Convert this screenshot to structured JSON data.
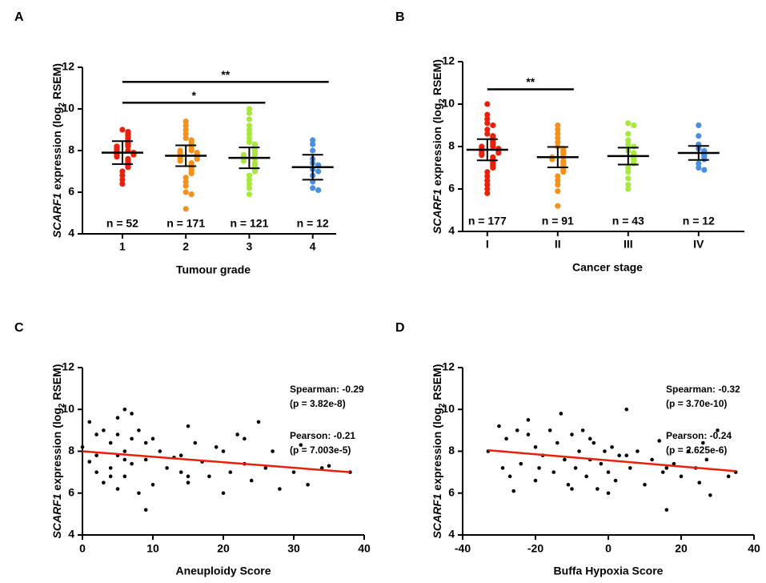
{
  "chart_data": [
    {
      "type": "dot",
      "letter": "A",
      "y_label": [
        "SCARF1",
        " expression (log",
        "2",
        " RSEM)"
      ],
      "x_label": "Tumour grade",
      "categories": [
        "1",
        "2",
        "3",
        "4"
      ],
      "n_labels": [
        "n = 52",
        "n = 171",
        "n = 121",
        "n = 12"
      ],
      "groups": [
        {
          "color": "#e8200c",
          "values": [
            9.0,
            8.9,
            8.8,
            8.7,
            8.6,
            8.5,
            8.4,
            8.3,
            8.2,
            8.2,
            8.1,
            8.0,
            8.0,
            7.9,
            7.9,
            7.8,
            7.8,
            7.7,
            7.6,
            7.5,
            7.4,
            7.3,
            7.2,
            7.0,
            6.8,
            6.6,
            6.4
          ],
          "mean": 7.9,
          "sd": 0.55
        },
        {
          "color": "#f0921c",
          "values": [
            9.4,
            9.2,
            9.0,
            8.8,
            8.6,
            8.5,
            8.4,
            8.3,
            8.2,
            8.1,
            8.0,
            8.0,
            7.9,
            7.9,
            7.8,
            7.8,
            7.7,
            7.7,
            7.6,
            7.6,
            7.5,
            7.4,
            7.3,
            7.2,
            7.1,
            7.0,
            6.9,
            6.7,
            6.5,
            6.3,
            6.0,
            5.9,
            5.2
          ],
          "mean": 7.75,
          "sd": 0.5
        },
        {
          "color": "#a8e83c",
          "values": [
            10.0,
            9.8,
            9.5,
            9.2,
            9.0,
            8.8,
            8.6,
            8.4,
            8.3,
            8.2,
            8.1,
            8.0,
            7.9,
            7.8,
            7.8,
            7.7,
            7.6,
            7.6,
            7.5,
            7.4,
            7.3,
            7.2,
            7.1,
            7.0,
            6.8,
            6.6,
            6.4,
            6.2,
            5.9
          ],
          "mean": 7.65,
          "sd": 0.5
        },
        {
          "color": "#4a90e0",
          "values": [
            8.5,
            8.3,
            8.0,
            7.6,
            7.4,
            7.3,
            7.1,
            7.0,
            6.8,
            6.5,
            6.2,
            6.1
          ],
          "mean": 7.2,
          "sd": 0.6
        }
      ],
      "ylim": [
        4,
        12
      ],
      "yticks": [
        4,
        6,
        8,
        10,
        12
      ],
      "brackets": [
        {
          "from": 0,
          "to": 3,
          "y": 11.3,
          "label": "**"
        },
        {
          "from": 0,
          "to": 2,
          "y": 10.3,
          "label": "*"
        }
      ]
    },
    {
      "type": "dot",
      "letter": "B",
      "y_label": [
        "SCARF1",
        " expression (log",
        "2",
        " RSEM)"
      ],
      "x_label": "Cancer stage",
      "categories": [
        "I",
        "II",
        "III",
        "IV"
      ],
      "n_labels": [
        "n = 177",
        "n = 91",
        "n = 43",
        "n = 12"
      ],
      "groups": [
        {
          "color": "#e8200c",
          "values": [
            10.0,
            9.5,
            9.3,
            9.1,
            9.0,
            8.8,
            8.6,
            8.5,
            8.4,
            8.3,
            8.2,
            8.1,
            8.0,
            8.0,
            7.9,
            7.9,
            7.8,
            7.8,
            7.7,
            7.7,
            7.6,
            7.5,
            7.4,
            7.3,
            7.2,
            7.1,
            7.0,
            6.8,
            6.6,
            6.4,
            6.2,
            6.0,
            5.8
          ],
          "mean": 7.85,
          "sd": 0.5
        },
        {
          "color": "#f0921c",
          "values": [
            9.0,
            8.8,
            8.6,
            8.4,
            8.2,
            8.0,
            7.9,
            7.8,
            7.7,
            7.6,
            7.5,
            7.5,
            7.4,
            7.3,
            7.2,
            7.1,
            7.0,
            6.9,
            6.8,
            6.6,
            6.4,
            6.2,
            5.9,
            5.2
          ],
          "mean": 7.5,
          "sd": 0.48
        },
        {
          "color": "#a8e83c",
          "values": [
            9.1,
            9.0,
            8.6,
            8.3,
            8.1,
            8.0,
            7.8,
            7.7,
            7.6,
            7.5,
            7.4,
            7.3,
            7.2,
            7.0,
            6.8,
            6.5,
            6.2,
            6.0
          ],
          "mean": 7.55,
          "sd": 0.4
        },
        {
          "color": "#4a90e0",
          "values": [
            9.0,
            8.5,
            8.1,
            7.9,
            7.8,
            7.7,
            7.6,
            7.5,
            7.4,
            7.2,
            7.0,
            6.9
          ],
          "mean": 7.7,
          "sd": 0.33
        }
      ],
      "ylim": [
        4,
        12
      ],
      "yticks": [
        4,
        6,
        8,
        10,
        12
      ],
      "brackets": [
        {
          "from": 0,
          "to": 1,
          "y": 10.7,
          "label": "**"
        }
      ]
    },
    {
      "type": "scatter",
      "letter": "C",
      "y_label": [
        "SCARF1",
        " expression (log",
        "2",
        " RSEM)"
      ],
      "x_label": "Aneuploidy Score",
      "x": [
        0,
        1,
        1,
        2,
        2,
        3,
        3,
        4,
        4,
        5,
        5,
        5,
        6,
        6,
        6,
        7,
        7,
        8,
        8,
        9,
        9,
        10,
        10,
        11,
        12,
        13,
        14,
        15,
        15,
        16,
        17,
        18,
        19,
        20,
        20,
        21,
        22,
        23,
        24,
        25,
        26,
        27,
        28,
        30,
        31,
        32,
        34,
        35,
        38,
        5,
        6,
        9,
        4,
        2,
        7,
        15,
        23,
        14
      ],
      "y": [
        8.2,
        9.4,
        7.5,
        8.8,
        7.0,
        9.0,
        6.5,
        8.4,
        7.2,
        9.6,
        7.8,
        6.2,
        10.0,
        8.0,
        6.8,
        9.8,
        7.4,
        9.0,
        6.0,
        7.6,
        5.2,
        8.6,
        6.4,
        8.0,
        7.2,
        7.7,
        7.0,
        9.2,
        6.5,
        8.4,
        7.5,
        6.8,
        8.2,
        8.0,
        6.0,
        7.0,
        8.8,
        7.4,
        6.6,
        9.4,
        7.2,
        8.0,
        6.2,
        7.0,
        8.3,
        6.4,
        7.2,
        7.3,
        7.0,
        8.8,
        7.6,
        8.4,
        6.8,
        7.8,
        8.6,
        6.8,
        8.6,
        7.8
      ],
      "color": "#000000",
      "xlim": [
        0,
        40
      ],
      "xticks": [
        0,
        10,
        20,
        30,
        40
      ],
      "ylim": [
        4,
        12
      ],
      "yticks": [
        4,
        6,
        8,
        10,
        12
      ],
      "fit": {
        "color": "#e8200c",
        "x": [
          0,
          38
        ],
        "y": [
          8.0,
          7.0
        ]
      },
      "annotations": [
        "Spearman: -0.29",
        "(p = 3.82e-8)",
        "Pearson: -0.21",
        "(p = 7.003e-5)"
      ]
    },
    {
      "type": "scatter",
      "letter": "D",
      "y_label": [
        "SCARF1",
        " expression (log",
        "2",
        " RSEM)"
      ],
      "x_label": "Buffa Hypoxia Score",
      "x": [
        -33,
        -30,
        -29,
        -28,
        -27,
        -25,
        -24,
        -22,
        -20,
        -20,
        -18,
        -16,
        -15,
        -14,
        -13,
        -12,
        -11,
        -10,
        -9,
        -8,
        -7,
        -6,
        -5,
        -4,
        -3,
        -2,
        -1,
        0,
        1,
        2,
        3,
        5,
        6,
        8,
        10,
        12,
        14,
        15,
        16,
        18,
        20,
        22,
        24,
        25,
        26,
        27,
        28,
        30,
        33,
        35,
        -26,
        -19,
        -10,
        -5,
        0,
        5,
        16,
        -22
      ],
      "y": [
        8.0,
        9.2,
        7.2,
        8.6,
        6.8,
        9.0,
        7.4,
        9.5,
        8.2,
        6.6,
        7.8,
        9.0,
        7.0,
        8.4,
        9.8,
        7.6,
        6.4,
        8.8,
        7.2,
        8.0,
        9.0,
        6.8,
        7.6,
        8.4,
        6.2,
        7.4,
        8.0,
        7.0,
        8.2,
        6.6,
        7.8,
        10.0,
        7.2,
        8.0,
        6.4,
        7.6,
        8.5,
        7.0,
        5.2,
        7.4,
        6.8,
        8.0,
        7.2,
        6.5,
        8.4,
        7.6,
        5.9,
        9.0,
        6.8,
        7.0,
        6.1,
        7.2,
        6.2,
        8.6,
        6.0,
        7.8,
        7.2,
        8.8
      ],
      "color": "#000000",
      "xlim": [
        -40,
        40
      ],
      "xticks": [
        -40,
        -20,
        0,
        20,
        40
      ],
      "ylim": [
        4,
        12
      ],
      "yticks": [
        4,
        6,
        8,
        10,
        12
      ],
      "fit": {
        "color": "#e8200c",
        "x": [
          -33,
          35
        ],
        "y": [
          8.05,
          7.05
        ]
      },
      "annotations": [
        "Spearman: -0.32",
        "(p = 3.70e-10)",
        "Pearson: -0.24",
        "(p = 2.625e-6)"
      ]
    }
  ]
}
